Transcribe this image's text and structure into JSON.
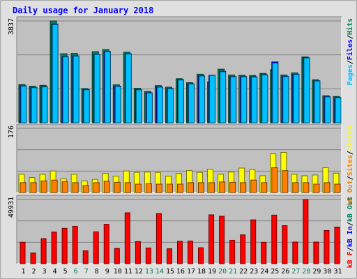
{
  "chart_data": [
    {
      "type": "bar",
      "title": "Daily usage for January 2018",
      "max_label": "3837",
      "ylim": [
        0,
        3837
      ],
      "categories": [
        "1",
        "2",
        "3",
        "4",
        "5",
        "6",
        "7",
        "8",
        "9",
        "10",
        "11",
        "12",
        "13",
        "14",
        "15",
        "16",
        "17",
        "18",
        "19",
        "20",
        "21",
        "22",
        "23",
        "24",
        "25",
        "26",
        "27",
        "28",
        "29",
        "30",
        "31"
      ],
      "weekend_days": [
        "6",
        "7",
        "13",
        "14",
        "20",
        "21",
        "27",
        "28"
      ],
      "legend": [
        "Pages",
        "Files",
        "Hits"
      ],
      "series": [
        {
          "name": "Hits",
          "color": "#00805c",
          "values": [
            1440,
            1380,
            1410,
            3837,
            2600,
            2610,
            1290,
            2680,
            2760,
            1430,
            2660,
            1300,
            1180,
            1400,
            1340,
            1660,
            1510,
            1830,
            1540,
            2020,
            1800,
            1790,
            1780,
            1860,
            2000,
            1800,
            1880,
            2480,
            1620,
            1020,
            990
          ]
        },
        {
          "name": "Files",
          "color": "#0000ff",
          "values": [
            1390,
            1330,
            1360,
            3720,
            2490,
            2520,
            1250,
            2580,
            2690,
            1380,
            2600,
            1250,
            1130,
            1350,
            1290,
            1620,
            1470,
            1770,
            1790,
            1940,
            1740,
            1740,
            1730,
            1810,
            2290,
            1750,
            1830,
            2450,
            1580,
            980,
            950
          ]
        },
        {
          "name": "Pages",
          "color": "#00c0ff",
          "values": [
            1380,
            1320,
            1350,
            3700,
            2480,
            2510,
            1240,
            2570,
            2680,
            1370,
            2590,
            1240,
            1120,
            1340,
            1280,
            1610,
            1460,
            1760,
            1780,
            1920,
            1730,
            1730,
            1720,
            1800,
            2250,
            1740,
            1820,
            2440,
            1570,
            970,
            940
          ]
        }
      ],
      "grid": true
    },
    {
      "type": "bar",
      "max_label": "176",
      "ylim": [
        0,
        176
      ],
      "categories": [
        "1",
        "2",
        "3",
        "4",
        "5",
        "6",
        "7",
        "8",
        "9",
        "10",
        "11",
        "12",
        "13",
        "14",
        "15",
        "16",
        "17",
        "18",
        "19",
        "20",
        "21",
        "22",
        "23",
        "24",
        "25",
        "26",
        "27",
        "28",
        "29",
        "30",
        "31"
      ],
      "legend": [
        "kB Out",
        "Sites",
        "Visits"
      ],
      "series": [
        {
          "name": "Visits",
          "color": "#ffff00",
          "values": [
            50,
            41,
            50,
            59,
            38,
            50,
            32,
            36,
            52,
            45,
            59,
            55,
            56,
            55,
            45,
            52,
            60,
            55,
            64,
            50,
            56,
            67,
            63,
            46,
            106,
            110,
            50,
            46,
            48,
            68,
            53
          ]
        },
        {
          "name": "Sites",
          "color": "#ff8000",
          "values": [
            27,
            27,
            32,
            34,
            30,
            27,
            19,
            27,
            31,
            28,
            27,
            23,
            24,
            23,
            23,
            23,
            27,
            27,
            27,
            29,
            28,
            27,
            34,
            27,
            68,
            60,
            27,
            27,
            23,
            27,
            23
          ]
        }
      ],
      "grid": true
    },
    {
      "type": "bar",
      "max_label": "49931",
      "ylim": [
        0,
        49931
      ],
      "categories": [
        "1",
        "2",
        "3",
        "4",
        "5",
        "6",
        "7",
        "8",
        "9",
        "10",
        "11",
        "12",
        "13",
        "14",
        "15",
        "16",
        "17",
        "18",
        "19",
        "20",
        "21",
        "22",
        "23",
        "24",
        "25",
        "26",
        "27",
        "28",
        "29",
        "30",
        "31"
      ],
      "legend": [
        "kB F",
        "kB In"
      ],
      "series": [
        {
          "name": "kB F",
          "color": "#ff0000",
          "values": [
            16700,
            8300,
            19500,
            24600,
            27500,
            29000,
            10000,
            24800,
            30600,
            11800,
            39600,
            17200,
            12200,
            39000,
            11600,
            17400,
            17600,
            12400,
            38000,
            36900,
            18200,
            22400,
            34100,
            16600,
            37800,
            29600,
            16800,
            49931,
            16800,
            25800,
            28500
          ]
        }
      ],
      "grid": true
    }
  ]
}
